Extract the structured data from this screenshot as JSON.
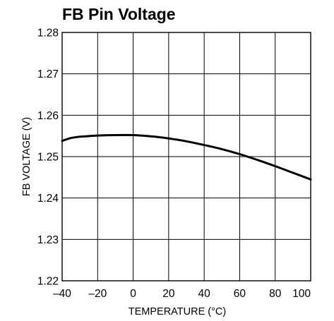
{
  "chart_data": {
    "type": "line",
    "title": "FB Pin Voltage",
    "xlabel": "TEMPERATURE (°C)",
    "ylabel": "FB VOLTAGE (V)",
    "xlim": [
      -40,
      100
    ],
    "ylim": [
      1.22,
      1.28
    ],
    "x_ticks": [
      "–40",
      "–20",
      "0",
      "20",
      "40",
      "60",
      "80",
      "100"
    ],
    "y_ticks": [
      "1.22",
      "1.23",
      "1.24",
      "1.25",
      "1.26",
      "1.27",
      "1.28"
    ],
    "grid": true,
    "series": [
      {
        "x": [
          -40,
          -35,
          -30,
          -20,
          -10,
          0,
          10,
          20,
          30,
          40,
          50,
          60,
          70,
          80,
          90,
          100
        ],
        "y": [
          1.2538,
          1.2545,
          1.2548,
          1.2551,
          1.2552,
          1.2552,
          1.2549,
          1.2544,
          1.2537,
          1.2528,
          1.2518,
          1.2506,
          1.2492,
          1.2477,
          1.2461,
          1.2445
        ]
      }
    ]
  }
}
